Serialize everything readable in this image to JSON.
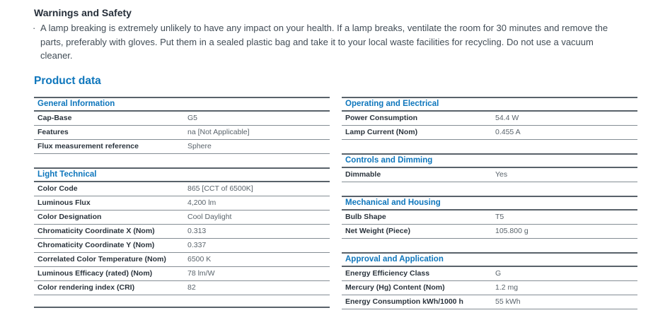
{
  "colors": {
    "accent_blue": "#0e76bc",
    "heading_dark": "#262f3a",
    "body_text": "#414c56",
    "rule_dark": "#59626a",
    "rule_light": "#848d94"
  },
  "warnings": {
    "title": "Warnings and Safety",
    "bullet": "·",
    "text": "A lamp breaking is extremely unlikely to have any impact on your health. If a lamp breaks, ventilate the room for 30 minutes and remove the parts, preferably with gloves. Put them in a sealed plastic bag and take it to your local waste facilities for recycling. Do not use a vacuum cleaner."
  },
  "product_data_title": "Product data",
  "sections": {
    "general_information": {
      "header": "General Information",
      "rows": [
        {
          "label": "Cap-Base",
          "value": "G5"
        },
        {
          "label": "Features",
          "value": "na [Not Applicable]"
        },
        {
          "label": "Flux measurement reference",
          "value": "Sphere"
        }
      ]
    },
    "light_technical": {
      "header": "Light Technical",
      "rows": [
        {
          "label": "Color Code",
          "value": "865 [CCT of 6500K]"
        },
        {
          "label": "Luminous Flux",
          "value": "4,200 lm"
        },
        {
          "label": "Color Designation",
          "value": "Cool Daylight"
        },
        {
          "label": "Chromaticity Coordinate X (Nom)",
          "value": "0.313"
        },
        {
          "label": "Chromaticity Coordinate Y (Nom)",
          "value": "0.337"
        },
        {
          "label": "Correlated Color Temperature (Nom)",
          "value": "6500 K"
        },
        {
          "label": "Luminous Efficacy (rated) (Nom)",
          "value": "78 lm/W"
        },
        {
          "label": "Color rendering index (CRI)",
          "value": "82"
        }
      ]
    },
    "operating_and_electrical": {
      "header": "Operating and Electrical",
      "rows": [
        {
          "label": "Power Consumption",
          "value": "54.4 W"
        },
        {
          "label": "Lamp Current (Nom)",
          "value": "0.455 A"
        }
      ]
    },
    "controls_and_dimming": {
      "header": "Controls and Dimming",
      "rows": [
        {
          "label": "Dimmable",
          "value": "Yes"
        }
      ]
    },
    "mechanical_and_housing": {
      "header": "Mechanical and Housing",
      "rows": [
        {
          "label": "Bulb Shape",
          "value": "T5"
        },
        {
          "label": "Net Weight (Piece)",
          "value": "105.800 g"
        }
      ]
    },
    "approval_and_application": {
      "header": "Approval and Application",
      "rows": [
        {
          "label": "Energy Efficiency Class",
          "value": "G"
        },
        {
          "label": "Mercury (Hg) Content (Nom)",
          "value": "1.2 mg"
        },
        {
          "label": "Energy Consumption kWh/1000 h",
          "value": "55 kWh"
        }
      ]
    }
  }
}
